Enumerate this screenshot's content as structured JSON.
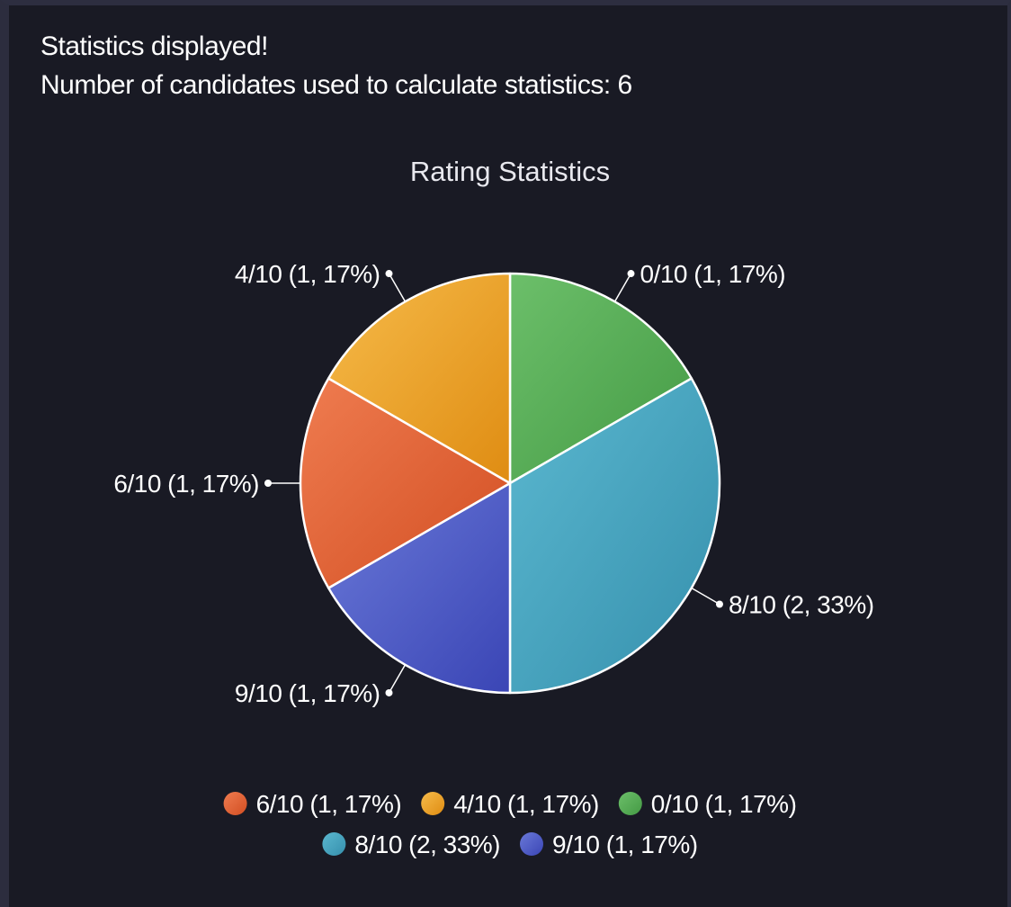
{
  "status": {
    "line1": "Statistics displayed!",
    "line2": "Number of candidates used to calculate statistics: 6"
  },
  "colors": {
    "background": "#191a24",
    "slice_border": "#ffffff"
  },
  "chart_data": {
    "type": "pie",
    "title": "Rating Statistics",
    "total": 6,
    "legend_position": "bottom",
    "slices": [
      {
        "label": "0/10 (1, 17%)",
        "value": 1,
        "color_light": "#6cbf6a",
        "color_dark": "#449a44"
      },
      {
        "label": "8/10 (2, 33%)",
        "value": 2,
        "color_light": "#5bb8d0",
        "color_dark": "#358fac"
      },
      {
        "label": "9/10 (1, 17%)",
        "value": 1,
        "color_light": "#6a79d8",
        "color_dark": "#3a45b5"
      },
      {
        "label": "6/10 (1, 17%)",
        "value": 1,
        "color_light": "#ef7c50",
        "color_dark": "#d24e22"
      },
      {
        "label": "4/10 (1, 17%)",
        "value": 1,
        "color_light": "#f6bb4a",
        "color_dark": "#df8c12"
      }
    ],
    "legend_order": [
      "6/10 (1, 17%)",
      "4/10 (1, 17%)",
      "0/10 (1, 17%)",
      "8/10 (2, 33%)",
      "9/10 (1, 17%)"
    ]
  }
}
